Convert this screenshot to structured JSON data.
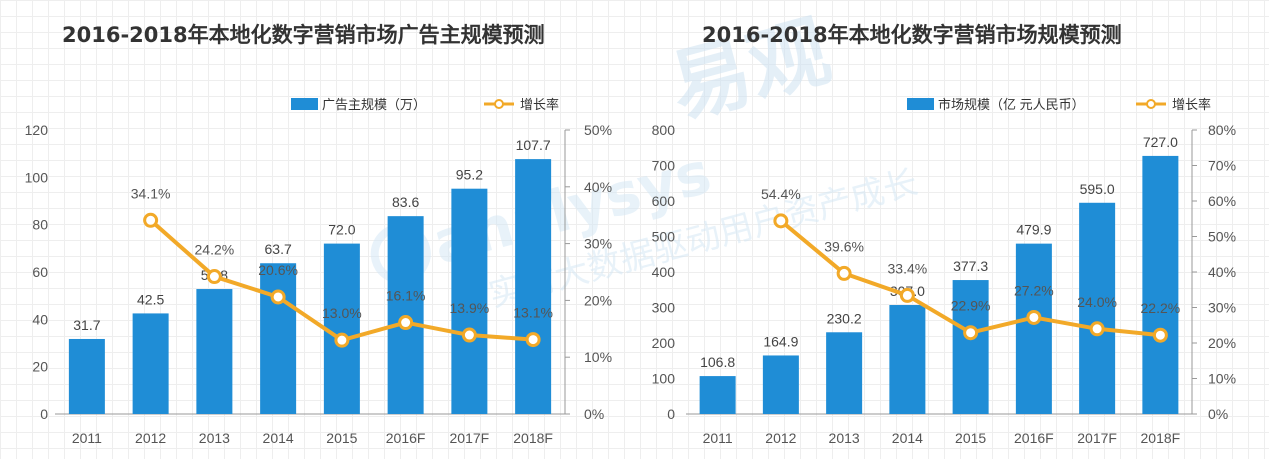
{
  "watermark": {
    "brand": "易观",
    "brand_latin": "analysys",
    "slogan": "实时大数据驱动用户资产成长"
  },
  "colors": {
    "bar": "#1f8dd6",
    "line": "#f2a928",
    "axis": "#999999"
  },
  "chart_data": [
    {
      "type": "bar",
      "title": "2016-2018年本地化数字营销市场广告主规模预测",
      "categories": [
        "2011",
        "2012",
        "2013",
        "2014",
        "2015",
        "2016F",
        "2017F",
        "2018F"
      ],
      "series": [
        {
          "name": "广告主规模（万）",
          "type": "bar",
          "axis": "left",
          "values": [
            31.7,
            42.5,
            52.8,
            63.7,
            72.0,
            83.6,
            95.2,
            107.7
          ],
          "labels": [
            "31.7",
            "42.5",
            "52.8",
            "63.7",
            "72.0",
            "83.6",
            "95.2",
            "107.7"
          ]
        },
        {
          "name": "增长率",
          "type": "line",
          "axis": "right",
          "values": [
            null,
            34.1,
            24.2,
            20.6,
            13.0,
            16.1,
            13.9,
            13.1
          ],
          "labels": [
            "",
            "34.1%",
            "24.2%",
            "20.6%",
            "13.0%",
            "16.1%",
            "13.9%",
            "13.1%"
          ]
        }
      ],
      "y_left": {
        "min": 0,
        "max": 120,
        "ticks": [
          "0",
          "20",
          "40",
          "60",
          "80",
          "100",
          "120"
        ]
      },
      "y_right": {
        "min": 0,
        "max": 50,
        "ticks": [
          "0%",
          "10%",
          "20%",
          "30%",
          "40%",
          "50%"
        ]
      },
      "legend_position": "top-right"
    },
    {
      "type": "bar",
      "title": "2016-2018年本地化数字营销市场规模预测",
      "categories": [
        "2011",
        "2012",
        "2013",
        "2014",
        "2015",
        "2016F",
        "2017F",
        "2018F"
      ],
      "series": [
        {
          "name": "市场规模（亿 元人民币）",
          "type": "bar",
          "axis": "left",
          "values": [
            106.8,
            164.9,
            230.2,
            307.0,
            377.3,
            479.9,
            595.0,
            727.0
          ],
          "labels": [
            "106.8",
            "164.9",
            "230.2",
            "307.0",
            "377.3",
            "479.9",
            "595.0",
            "727.0"
          ]
        },
        {
          "name": "增长率",
          "type": "line",
          "axis": "right",
          "values": [
            null,
            54.4,
            39.6,
            33.4,
            22.9,
            27.2,
            24.0,
            22.2
          ],
          "labels": [
            "",
            "54.4%",
            "39.6%",
            "33.4%",
            "22.9%",
            "27.2%",
            "24.0%",
            "22.2%"
          ]
        }
      ],
      "y_left": {
        "min": 0,
        "max": 800,
        "ticks": [
          "0",
          "100",
          "200",
          "300",
          "400",
          "500",
          "600",
          "700",
          "800"
        ]
      },
      "y_right": {
        "min": 0,
        "max": 80,
        "ticks": [
          "0%",
          "10%",
          "20%",
          "30%",
          "40%",
          "50%",
          "60%",
          "70%",
          "80%"
        ]
      },
      "legend_position": "top-right"
    }
  ]
}
